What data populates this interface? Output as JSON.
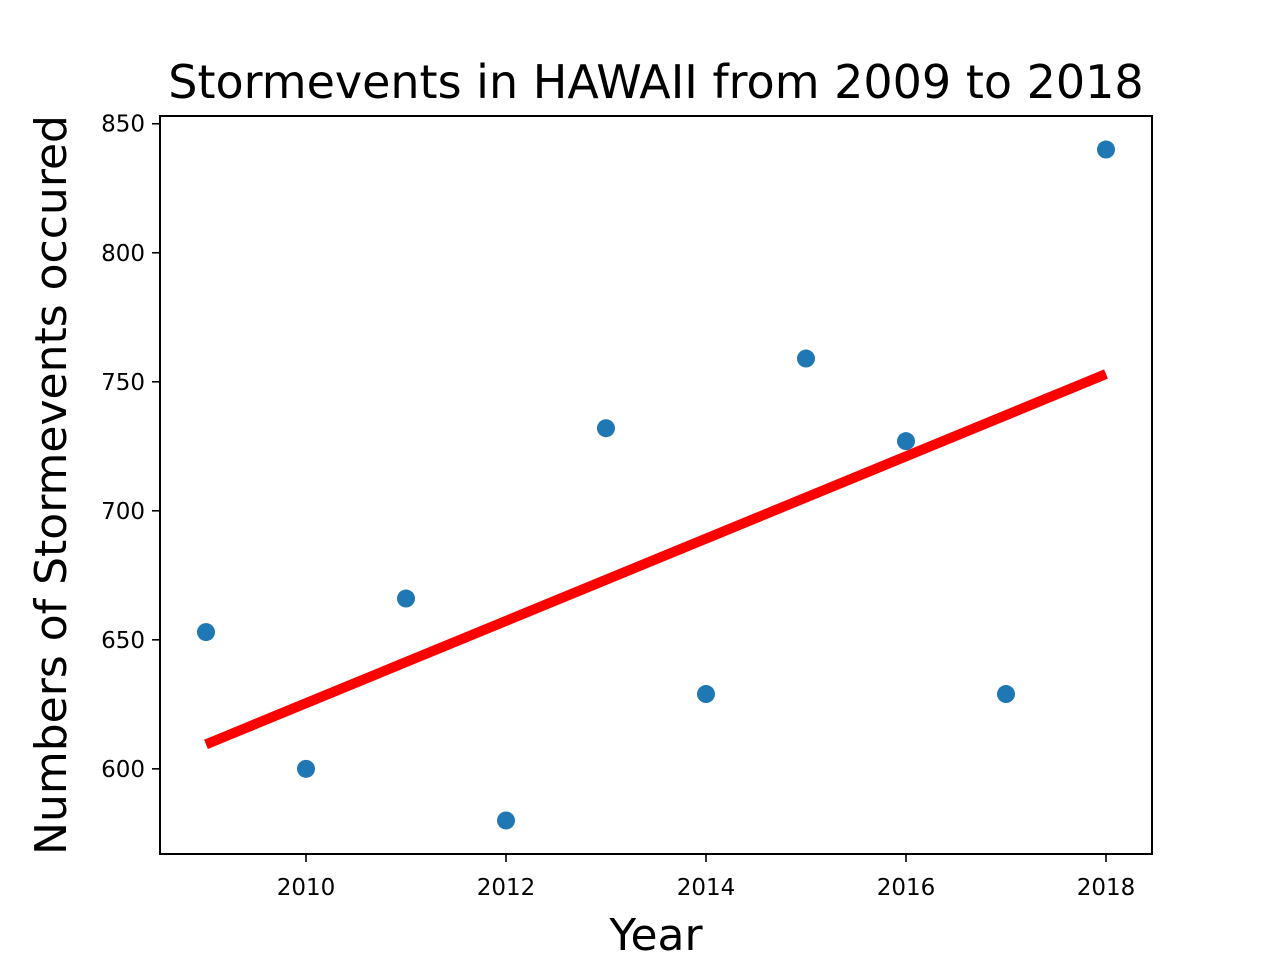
{
  "chart_data": {
    "type": "scatter",
    "title": "Stormevents in HAWAII from 2009 to 2018",
    "xlabel": "Year",
    "ylabel": "Numbers of Stormevents occured",
    "xlim": [
      2008.54,
      2018.46
    ],
    "ylim": [
      567,
      853
    ],
    "xticks": [
      2010,
      2012,
      2014,
      2016,
      2018
    ],
    "yticks": [
      600,
      650,
      700,
      750,
      800,
      850
    ],
    "grid": false,
    "legend": "none",
    "series": [
      {
        "kind": "scatter",
        "color": "#1f77b4",
        "x": [
          2009,
          2010,
          2011,
          2012,
          2013,
          2014,
          2015,
          2016,
          2017,
          2018
        ],
        "y": [
          653,
          600,
          666,
          580,
          732,
          629,
          759,
          727,
          629,
          840
        ]
      },
      {
        "kind": "line",
        "color": "#ff0000",
        "x": [
          2009,
          2018
        ],
        "y": [
          609.5,
          753
        ]
      }
    ]
  }
}
